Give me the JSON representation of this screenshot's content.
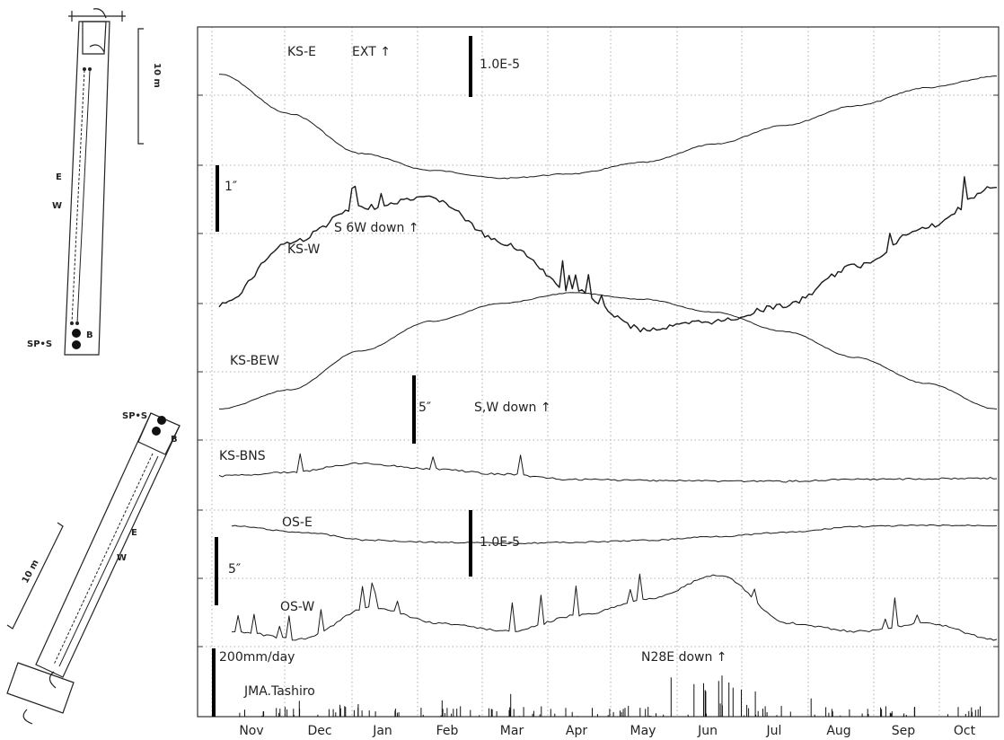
{
  "chart_data": {
    "type": "line",
    "months": [
      "Nov",
      "Dec",
      "Jan",
      "Feb",
      "Mar",
      "Apr",
      "May",
      "Jun",
      "Jul",
      "Aug",
      "Sep",
      "Oct"
    ],
    "series": [
      {
        "name": "KS-E",
        "label": "KS-E",
        "values": [
          0.9,
          0.55,
          0.2,
          0.05,
          -0.02,
          0.02,
          0.12,
          0.28,
          0.45,
          0.62,
          0.78,
          0.88
        ]
      },
      {
        "name": "KS-W",
        "label": "KS-W",
        "values": [
          0.1,
          0.5,
          0.72,
          0.78,
          0.5,
          0.2,
          -0.05,
          0.0,
          0.1,
          0.35,
          0.6,
          0.85
        ]
      },
      {
        "name": "KS-BEW",
        "label": "KS-BEW",
        "values": [
          0.1,
          0.25,
          0.55,
          0.78,
          0.92,
          1.0,
          0.95,
          0.85,
          0.7,
          0.5,
          0.3,
          0.1
        ]
      },
      {
        "name": "KS-BNS",
        "label": "KS-BNS",
        "values": [
          0.4,
          0.5,
          0.75,
          0.6,
          0.45,
          0.3,
          0.28,
          0.26,
          0.25,
          0.3,
          0.32,
          0.34
        ]
      },
      {
        "name": "OS-E",
        "label": "OS-E",
        "values": [
          0.92,
          0.6,
          0.2,
          0.1,
          0.05,
          0.1,
          0.2,
          0.4,
          0.6,
          0.9,
          0.95,
          0.95
        ]
      },
      {
        "name": "OS-W",
        "label": "OS-W",
        "values": [
          0.3,
          0.2,
          0.6,
          0.4,
          0.3,
          0.5,
          0.7,
          1.0,
          0.4,
          0.3,
          0.4,
          0.2
        ]
      }
    ],
    "scale_labels": {
      "ext": "EXT ↑",
      "scale_1e5_top": "1.0E-5",
      "scale_1in": "1″",
      "sw_down": "S 6W down ↑",
      "scale_5in": "5″",
      "sw_down2": "S,W down ↑",
      "scale_1e5_os": "1.0E-5",
      "scale_5in_os": "5″",
      "rain_scale": "200mm/day",
      "n28e": "N28E down ↑",
      "rain_station": "JMA.Tashiro"
    },
    "schematic_labels": {
      "top_length": "10 m",
      "top_E": "E",
      "top_W": "W",
      "top_sps": "SP•S",
      "top_B": "B",
      "bottom_sps": "SP•S",
      "bottom_B": "B",
      "bottom_E": "E",
      "bottom_W": "W",
      "bottom_length": "10 m"
    },
    "grid": true
  }
}
